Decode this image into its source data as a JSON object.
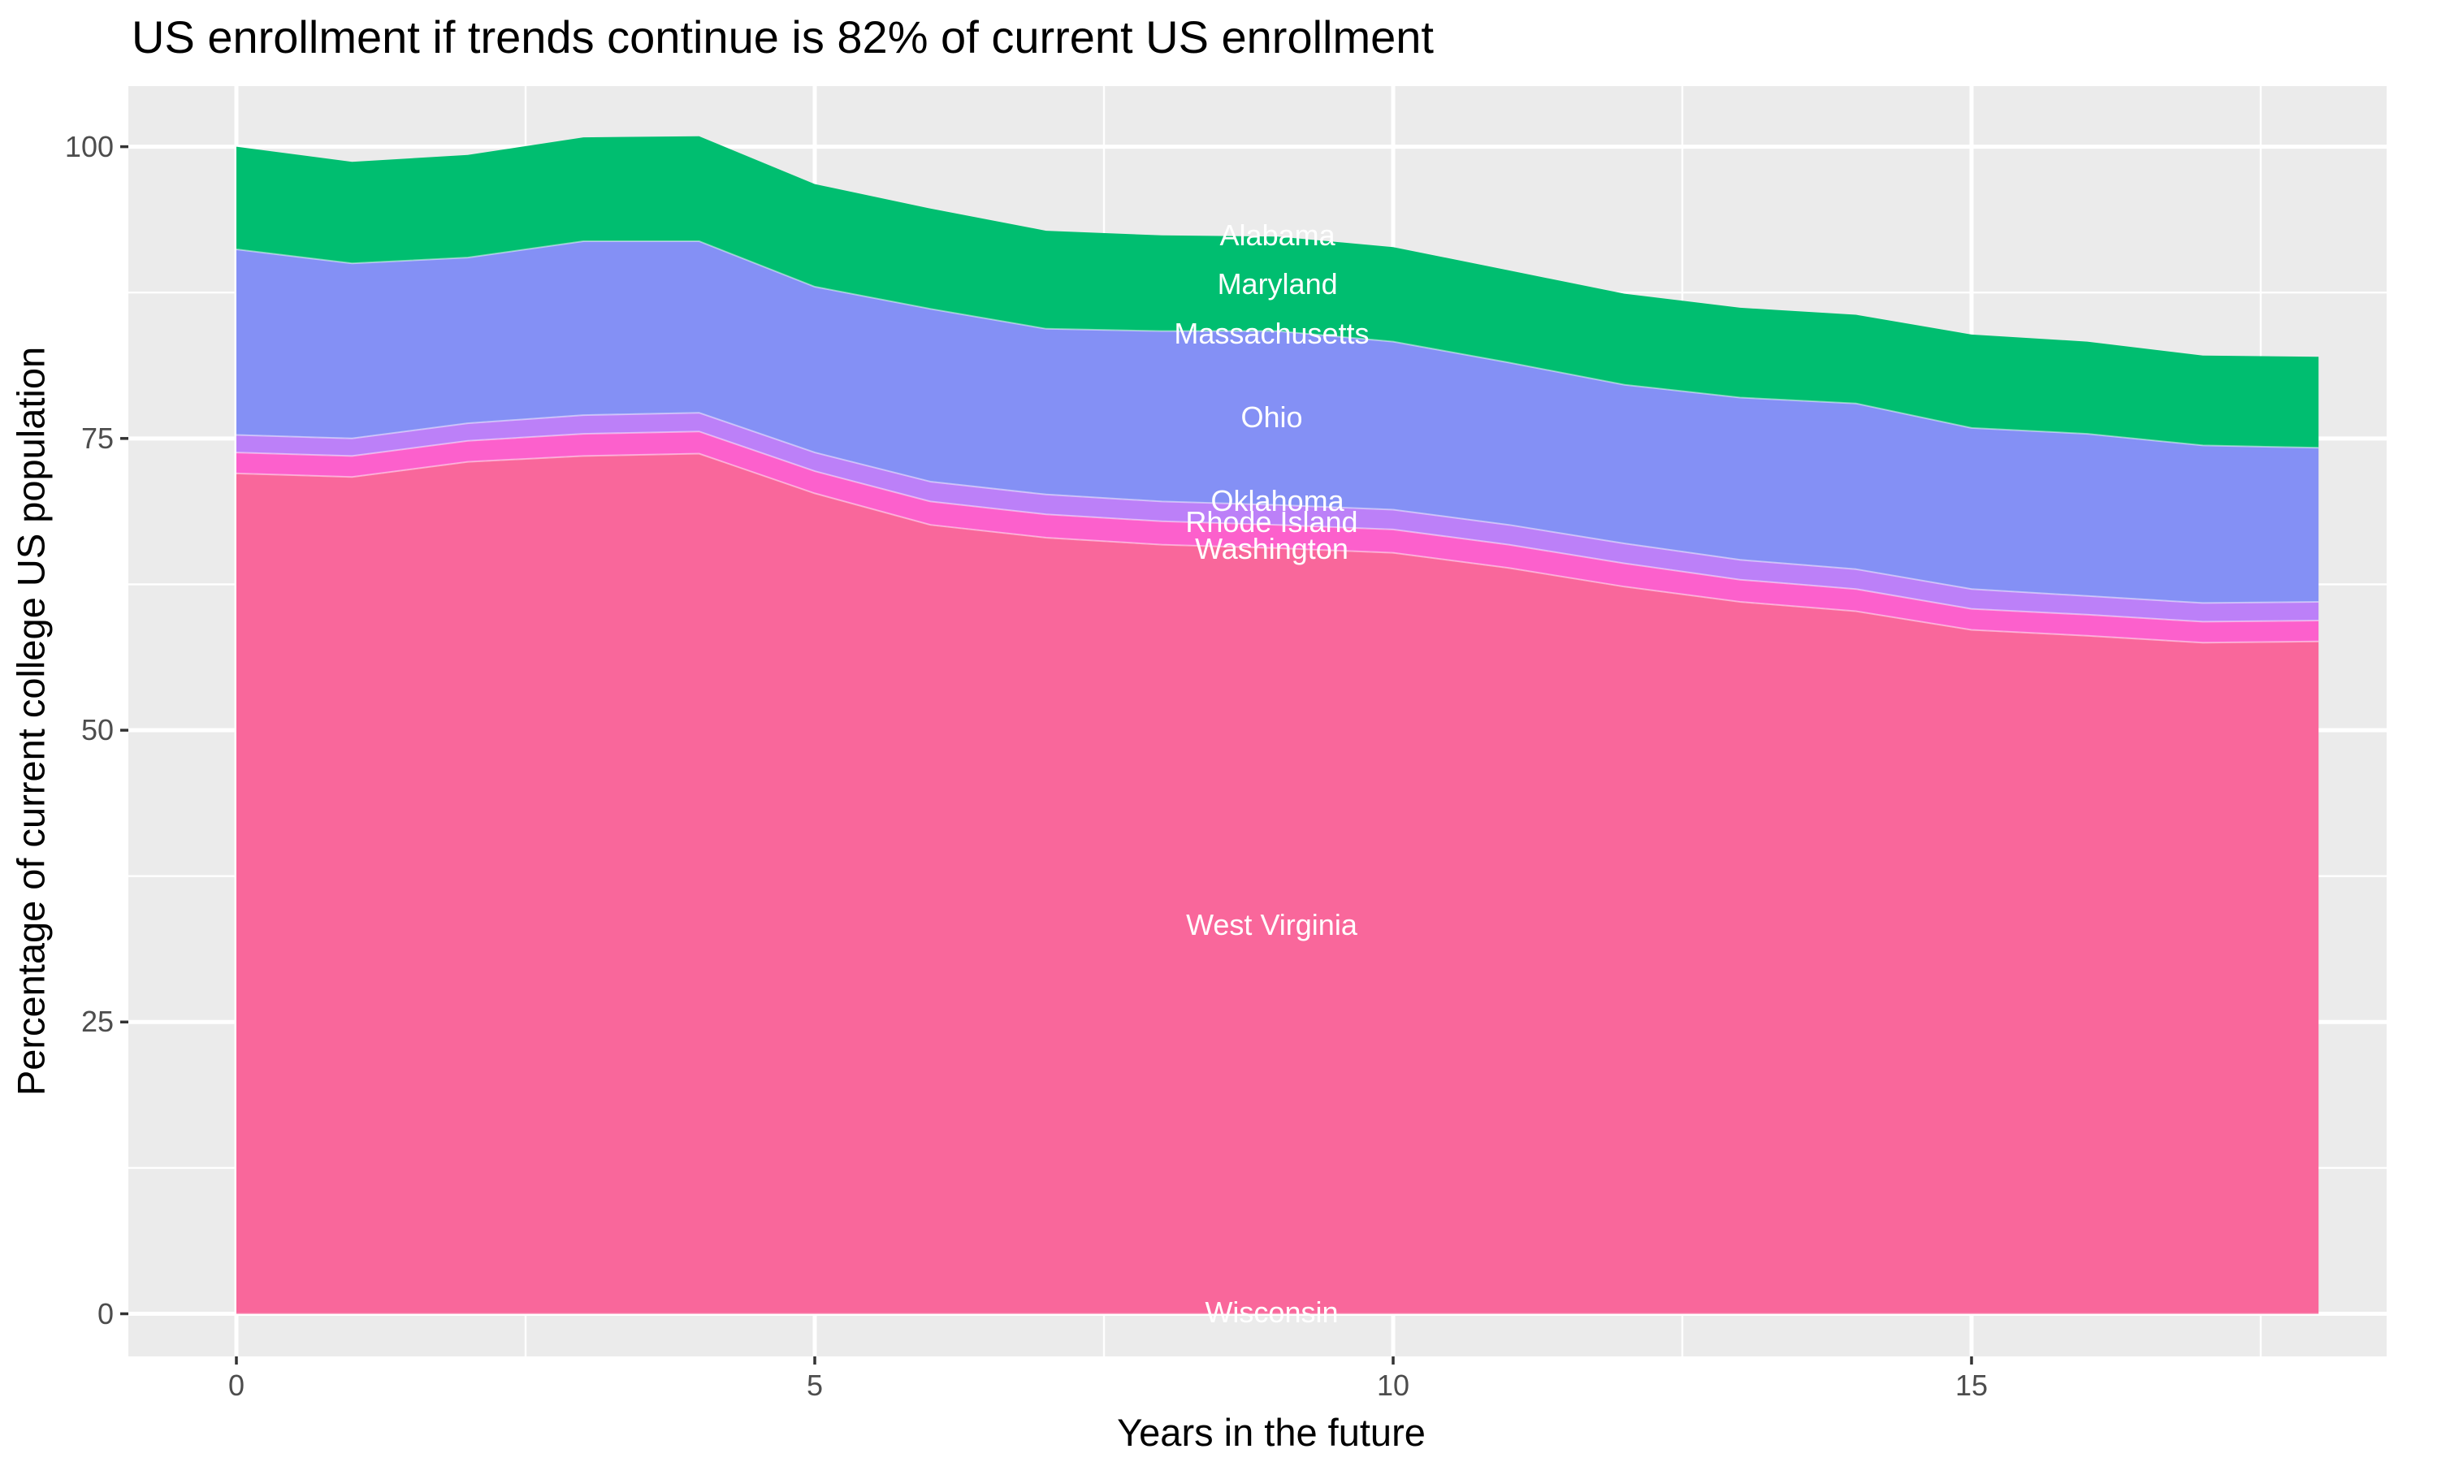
{
  "title": "US enrollment if trends continue is 82% of current US enrollment",
  "x_axis": {
    "title": "Years in the future",
    "tick_values": [
      0,
      5,
      10,
      15
    ],
    "tick_labels": [
      "0",
      "5",
      "10",
      "15"
    ]
  },
  "y_axis": {
    "title": "Percentage of current college US population",
    "tick_values": [
      0,
      25,
      50,
      75,
      100
    ],
    "tick_labels": [
      "0",
      "25",
      "50",
      "75",
      "100"
    ]
  },
  "style": {
    "panel_bg": "#EBEBEB",
    "grid_color": "#FFFFFF",
    "axis_tick_color": "#333333",
    "tick_label_color": "#4D4D4D",
    "title_color": "#000000",
    "area_label_color": "#FFFFFF"
  },
  "chart_data": {
    "type": "area",
    "stacked": true,
    "title": "US enrollment if trends continue is 82% of current US enrollment",
    "xlabel": "Years in the future",
    "ylabel": "Percentage of current college US population",
    "x": [
      0,
      1,
      2,
      3,
      4,
      5,
      6,
      7,
      8,
      9,
      10,
      11,
      12,
      13,
      14,
      15,
      16,
      17,
      18
    ],
    "x_range": [
      0,
      18
    ],
    "ylim": [
      0,
      100
    ],
    "grid": true,
    "legend_position": "none",
    "stack_order_note": "first series drawn at top of stack, last at bottom",
    "series": [
      {
        "name": "Alabama",
        "color": "#F8766D",
        "values": [
          0,
          0,
          0,
          0,
          0,
          0,
          0,
          0,
          0,
          0,
          0,
          0,
          0,
          0,
          0,
          0,
          0,
          0,
          0
        ]
      },
      {
        "name": "Maryland",
        "color": "#00BE70",
        "values": [
          8.8,
          8.7,
          8.8,
          8.9,
          9.0,
          8.8,
          8.6,
          8.4,
          8.2,
          8.1,
          8.1,
          7.9,
          7.8,
          7.7,
          7.6,
          8.0,
          7.9,
          7.7,
          7.8
        ]
      },
      {
        "name": "Massachusetts",
        "color": "#A3A500",
        "values": [
          0,
          0,
          0,
          0,
          0,
          0,
          0,
          0,
          0,
          0,
          0,
          0,
          0,
          0,
          0,
          0,
          0,
          0,
          0
        ]
      },
      {
        "name": "Ohio",
        "color": "#8490F5",
        "values": [
          15.9,
          15.0,
          14.2,
          14.9,
          14.7,
          14.2,
          14.8,
          14.2,
          14.6,
          14.9,
          14.4,
          13.9,
          13.6,
          13.9,
          14.2,
          13.8,
          13.9,
          13.5,
          13.2
        ]
      },
      {
        "name": "Oklahoma",
        "color": "#00C0B4",
        "values": [
          0,
          0,
          0,
          0,
          0,
          0,
          0,
          0,
          0,
          0,
          0,
          0,
          0,
          0,
          0,
          0,
          0,
          0,
          0
        ]
      },
      {
        "name": "Rhode Island",
        "color": "#BC80F8",
        "values": [
          1.5,
          1.5,
          1.5,
          1.6,
          1.6,
          1.6,
          1.7,
          1.7,
          1.7,
          1.7,
          1.7,
          1.7,
          1.7,
          1.7,
          1.7,
          1.7,
          1.6,
          1.6,
          1.6
        ]
      },
      {
        "name": "Washington",
        "color": "#FC60CC",
        "values": [
          1.8,
          1.8,
          1.8,
          1.9,
          1.9,
          1.9,
          2.0,
          2.0,
          2.0,
          2.0,
          2.0,
          2.0,
          2.0,
          1.9,
          1.9,
          1.8,
          1.8,
          1.8,
          1.8
        ]
      },
      {
        "name": "West Virginia",
        "color": "#F9679B",
        "values": [
          71.95,
          71.65,
          72.95,
          73.45,
          73.65,
          70.25,
          67.55,
          66.45,
          65.85,
          65.55,
          65.15,
          63.85,
          62.25,
          60.95,
          60.15,
          58.55,
          58.05,
          57.45,
          57.55
        ]
      },
      {
        "name": "Wisconsin",
        "color": "#F9679B",
        "values": [
          0.05,
          0.05,
          0.05,
          0.05,
          0.05,
          0.05,
          0.05,
          0.05,
          0.05,
          0.05,
          0.05,
          0.05,
          0.05,
          0.05,
          0.05,
          0.05,
          0.05,
          0.05,
          0.05
        ]
      }
    ],
    "stack_totals": [
      100.0,
      98.7,
      99.3,
      100.8,
      100.9,
      96.8,
      94.7,
      92.8,
      92.4,
      92.3,
      91.4,
      89.4,
      87.4,
      86.2,
      85.6,
      83.9,
      83.3,
      82.1,
      82.0
    ],
    "area_labels": [
      {
        "text": "Alabama",
        "x": 9.0,
        "y": 92.4
      },
      {
        "text": "Maryland",
        "x": 9.0,
        "y": 88.2
      },
      {
        "text": "Massachusetts",
        "x": 8.95,
        "y": 84.0
      },
      {
        "text": "Ohio",
        "x": 8.95,
        "y": 76.8
      },
      {
        "text": "Oklahoma",
        "x": 9.0,
        "y": 69.6
      },
      {
        "text": "Rhode Island",
        "x": 8.95,
        "y": 67.8
      },
      {
        "text": "Washington",
        "x": 8.95,
        "y": 65.5
      },
      {
        "text": "West Virginia",
        "x": 8.95,
        "y": 33.3
      },
      {
        "text": "Wisconsin",
        "x": 8.95,
        "y": 0.1
      }
    ]
  }
}
